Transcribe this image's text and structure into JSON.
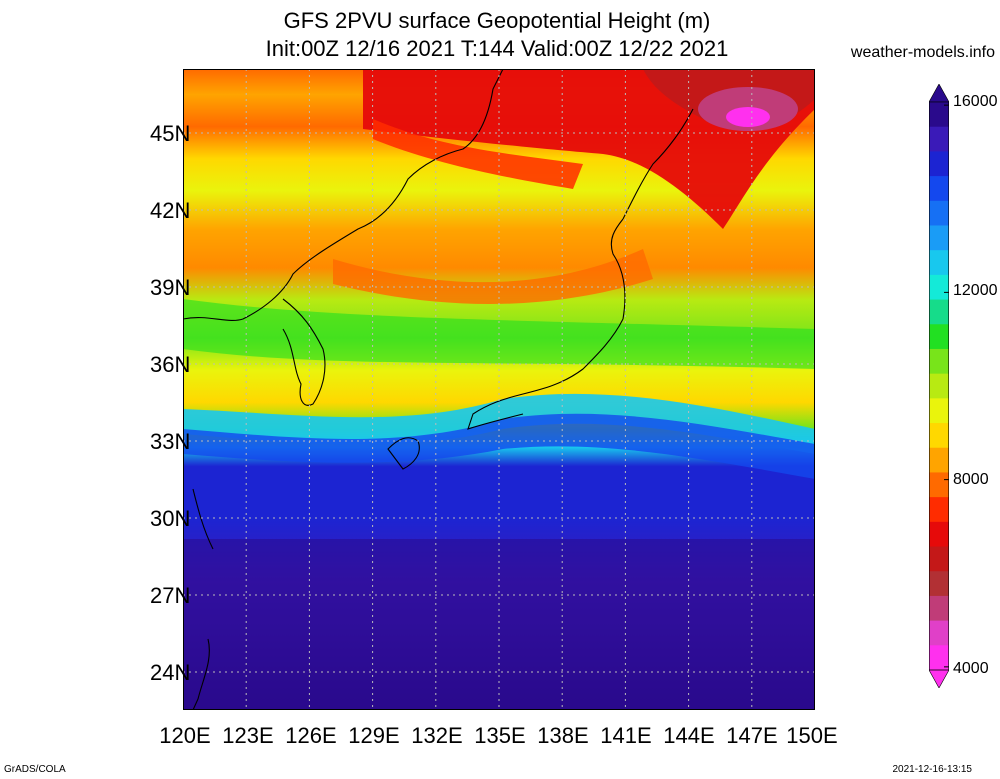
{
  "header": {
    "title_line1": "GFS 2PVU surface Geopotential Height (m)",
    "title_line2": "Init:00Z 12/16 2021 T:144 Valid:00Z 12/22 2021",
    "source": "weather-models.info"
  },
  "map": {
    "lat_labels": [
      "45N",
      "42N",
      "39N",
      "36N",
      "33N",
      "30N",
      "27N",
      "24N"
    ],
    "lon_labels": [
      "120E",
      "123E",
      "126E",
      "129E",
      "132E",
      "135E",
      "138E",
      "141E",
      "144E",
      "147E",
      "150E"
    ],
    "lat_range": [
      22.5,
      47.5
    ],
    "lon_range": [
      120,
      150
    ]
  },
  "colorbar": {
    "labels": [
      "16000",
      "12000",
      "8000",
      "4000"
    ],
    "colors": [
      "#2a0a8c",
      "#3a1ab8",
      "#1c24d2",
      "#1448ee",
      "#1670f4",
      "#1a9cf6",
      "#18c8ee",
      "#14ead8",
      "#16dc8a",
      "#22e022",
      "#78e41a",
      "#b8ea12",
      "#eaf40c",
      "#ffd800",
      "#ffa400",
      "#ff6a00",
      "#ff2c00",
      "#e60a0a",
      "#c41818",
      "#b23034",
      "#c03c78",
      "#e040c8",
      "#ff30ee"
    ],
    "colors_meaning": "top to bottom"
  },
  "footer": {
    "left": "GrADS/COLA",
    "right": "2021-12-16-13:15"
  }
}
